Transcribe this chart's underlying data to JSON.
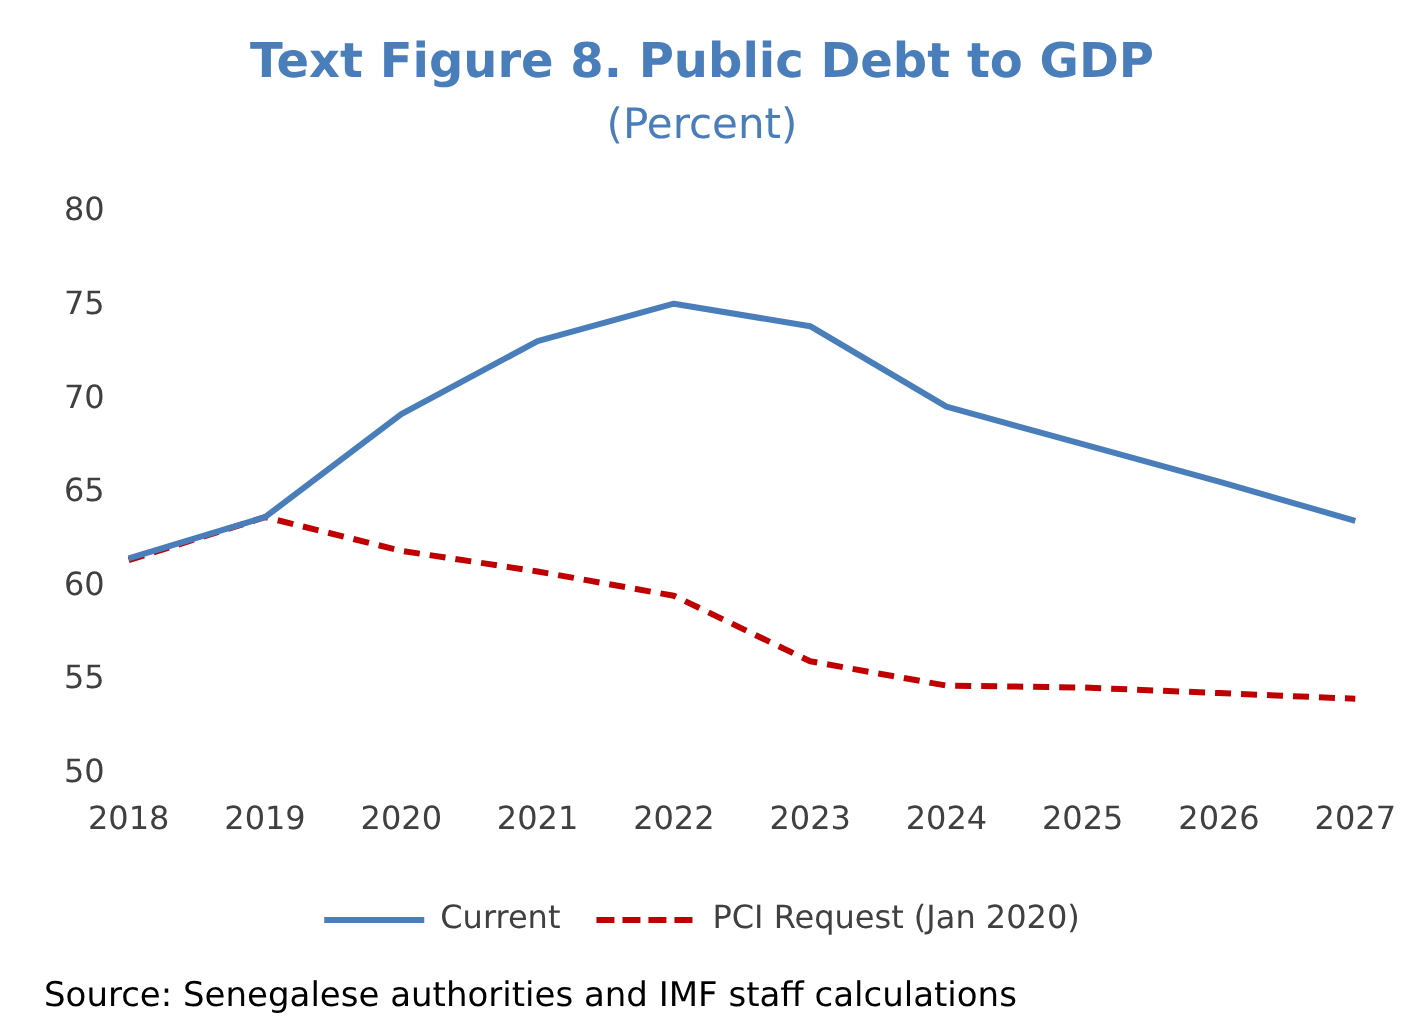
{
  "chart_data": {
    "type": "line",
    "title": "Text Figure 8. Public Debt to GDP",
    "subtitle": "(Percent)",
    "categories": [
      "2018",
      "2019",
      "2020",
      "2021",
      "2022",
      "2023",
      "2024",
      "2025",
      "2026",
      "2027"
    ],
    "series": [
      {
        "name": "Current",
        "color": "#4a7ebb",
        "values": [
          61.5,
          63.7,
          69.2,
          73.1,
          75.1,
          73.9,
          69.6,
          67.6,
          65.6,
          63.5
        ],
        "line_style": "solid"
      },
      {
        "name": "PCI Request (Jan 2020)",
        "color": "#c00000",
        "values": [
          61.4,
          63.7,
          61.9,
          60.8,
          59.5,
          56.0,
          54.7,
          54.6,
          54.3,
          54.0
        ],
        "line_style": "dashed"
      }
    ],
    "ylim": [
      50,
      80
    ],
    "yticks": [
      50,
      55,
      60,
      65,
      70,
      75,
      80
    ],
    "grid": false,
    "legend": "bottom",
    "marker": "none",
    "annotations": [
      "Source: Senegalese authorities and IMF staff calculations"
    ]
  }
}
